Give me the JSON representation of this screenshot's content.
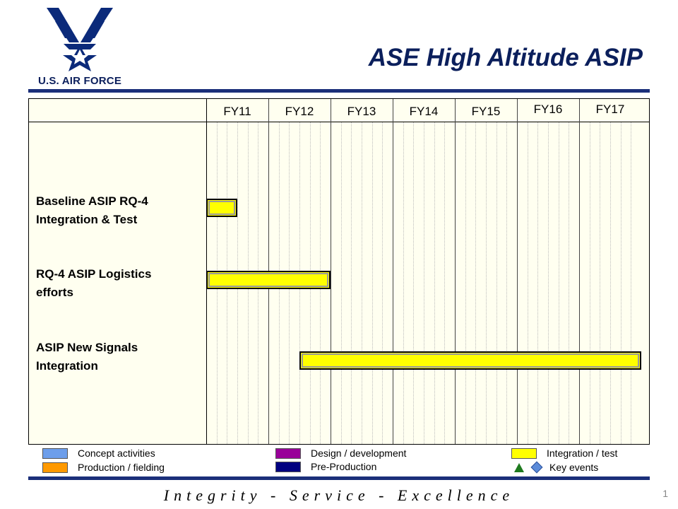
{
  "header": {
    "logo_text": "U.S. AIR FORCE",
    "title": "ASE High Altitude ASIP"
  },
  "chart_data": {
    "type": "gantt",
    "periods": [
      "FY11",
      "FY12",
      "FY13",
      "FY14",
      "FY15",
      "FY16",
      "FY17"
    ],
    "tasks": [
      {
        "label_lines": [
          "Baseline ASIP RQ-4",
          "Integration & Test"
        ],
        "start": 0,
        "end": 0.5,
        "category": "Integration / test"
      },
      {
        "label_lines": [
          "RQ-4 ASIP Logistics",
          "efforts"
        ],
        "start": 0,
        "end": 2.0,
        "category": "Integration / test"
      },
      {
        "label_lines": [
          "ASIP New Signals",
          "Integration"
        ],
        "start": 1.5,
        "end": 7.0,
        "category": "Integration / test"
      }
    ]
  },
  "legend": {
    "concept": {
      "label": "Concept activities",
      "color": "#6d9eeb"
    },
    "production": {
      "label": "Production / fielding",
      "color": "#ff9900"
    },
    "design": {
      "label": "Design / development",
      "color": "#990099"
    },
    "preproduction": {
      "label": "Pre-Production",
      "color": "#000080"
    },
    "integration": {
      "label": "Integration / test",
      "color": "#ffff00"
    },
    "key_events": {
      "label": "Key events"
    }
  },
  "footer": {
    "motto": "Integrity - Service - Excellence",
    "page_number": "1"
  }
}
